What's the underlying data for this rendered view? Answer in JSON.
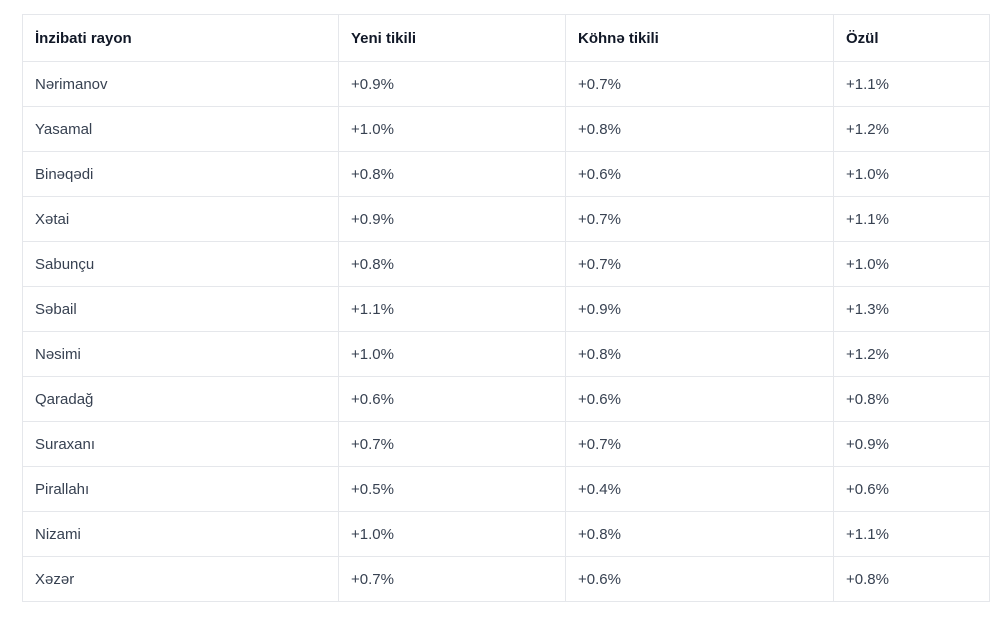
{
  "chart_data": {
    "type": "table",
    "title": "",
    "columns": [
      "İnzibati rayon",
      "Yeni tikili",
      "Köhnə tikili",
      "Özül"
    ],
    "rows": [
      [
        "Nərimanov",
        "+0.9%",
        "+0.7%",
        "+1.1%"
      ],
      [
        "Yasamal",
        "+1.0%",
        "+0.8%",
        "+1.2%"
      ],
      [
        "Binəqədi",
        "+0.8%",
        "+0.6%",
        "+1.0%"
      ],
      [
        "Xətai",
        "+0.9%",
        "+0.7%",
        "+1.1%"
      ],
      [
        "Sabunçu",
        "+0.8%",
        "+0.7%",
        "+1.0%"
      ],
      [
        "Səbail",
        "+1.1%",
        "+0.9%",
        "+1.3%"
      ],
      [
        "Nəsimi",
        "+1.0%",
        "+0.8%",
        "+1.2%"
      ],
      [
        "Qaradağ",
        "+0.6%",
        "+0.6%",
        "+0.8%"
      ],
      [
        "Suraxanı",
        "+0.7%",
        "+0.7%",
        "+0.9%"
      ],
      [
        "Pirallahı",
        "+0.5%",
        "+0.4%",
        "+0.6%"
      ],
      [
        "Nizami",
        "+1.0%",
        "+0.8%",
        "+1.1%"
      ],
      [
        "Xəzər",
        "+0.7%",
        "+0.6%",
        "+0.8%"
      ]
    ],
    "layout": {
      "grid": true,
      "header_bold": true,
      "border_color": "#e5e7eb",
      "header_text_color": "#111827",
      "body_text_color": "#374151",
      "background_color": "#ffffff"
    }
  }
}
